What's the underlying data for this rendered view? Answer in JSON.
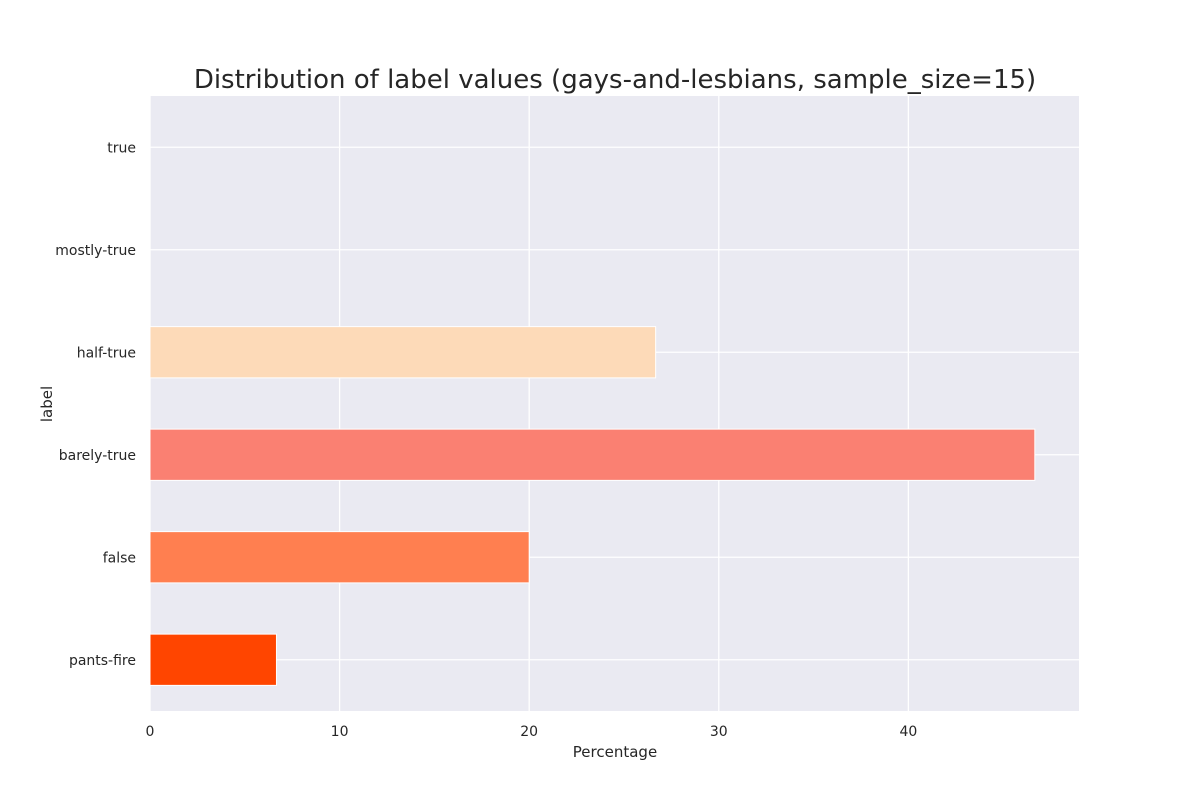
{
  "chart_data": {
    "type": "bar",
    "orientation": "horizontal",
    "title": "Distribution of label values (gays-and-lesbians, sample_size=15)",
    "xlabel": "Percentage",
    "ylabel": "label",
    "categories": [
      "pants-fire",
      "false",
      "barely-true",
      "half-true",
      "mostly-true",
      "true"
    ],
    "values": [
      6.67,
      20.0,
      46.67,
      26.67,
      0,
      0
    ],
    "colors": [
      "#ff4500",
      "#ff7f50",
      "#fa8072",
      "#fddab8",
      "#ffffff",
      "#ffffff"
    ],
    "xlim": [
      0,
      49
    ],
    "xticks": [
      0,
      10,
      20,
      30,
      40
    ],
    "xtick_labels": [
      "0",
      "10",
      "20",
      "30",
      "40"
    ],
    "grid": true,
    "background": "#eaeaf2",
    "grid_color": "#ffffff"
  }
}
